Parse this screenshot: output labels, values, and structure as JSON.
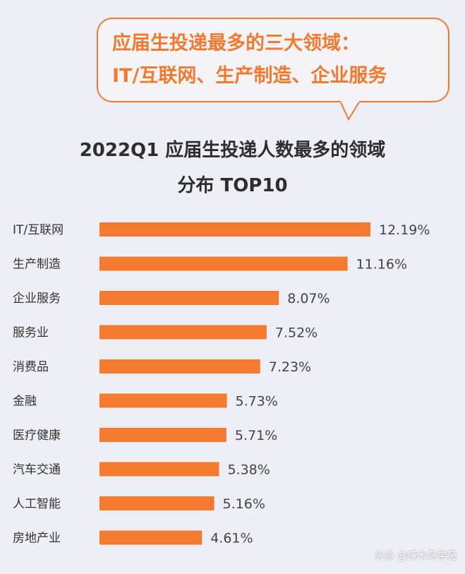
{
  "callout": {
    "line1": "应届生投递最多的三大领域：",
    "line2": "IT/互联网、生产制造、企业服务"
  },
  "chart_data": {
    "type": "bar",
    "orientation": "horizontal",
    "title": "2022Q1 应届生投递人数最多的领域分布 TOP10",
    "title_lines": [
      "2022Q1 应届生投递人数最多的领域",
      "分布 TOP10"
    ],
    "categories": [
      "IT/互联网",
      "生产制造",
      "企业服务",
      "服务业",
      "消费品",
      "金融",
      "医疗健康",
      "汽车交通",
      "人工智能",
      "房地产业"
    ],
    "values": [
      12.19,
      11.16,
      8.07,
      7.52,
      7.23,
      5.73,
      5.71,
      5.38,
      5.16,
      4.61
    ],
    "value_labels": [
      "12.19%",
      "11.16%",
      "8.07%",
      "7.52%",
      "7.23%",
      "5.73%",
      "5.71%",
      "5.38%",
      "5.16%",
      "4.61%"
    ],
    "unit": "%",
    "xlim": [
      0,
      12.19
    ],
    "grid": false,
    "legend": "none",
    "bar_color": "#f47a30"
  },
  "watermark": "头条 @啄木鸟学苑"
}
